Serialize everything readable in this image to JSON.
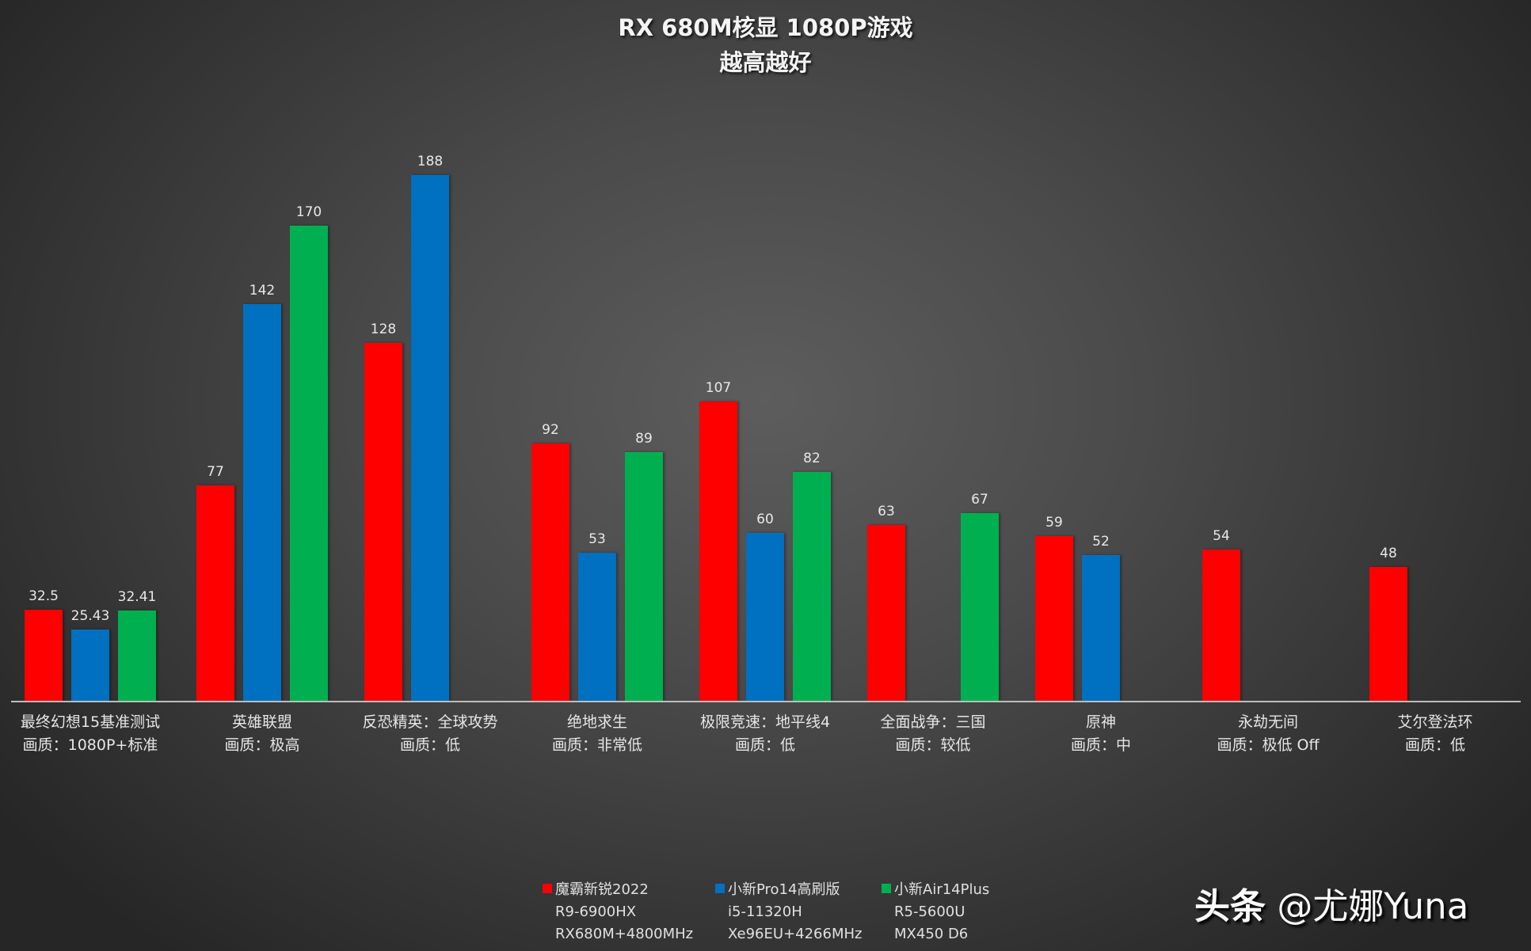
{
  "chart_data": {
    "type": "bar",
    "title": "RX 680M核显 1080P游戏",
    "subtitle": "越高越好",
    "xlabel": "",
    "ylabel": "",
    "grid": false,
    "legend_position": "bottom",
    "categories": [
      {
        "name": "最终幻想15基准测试",
        "quality": "画质：1080P+标准"
      },
      {
        "name": "英雄联盟",
        "quality": "画质：极高"
      },
      {
        "name": "反恐精英：全球攻势",
        "quality": "画质：低"
      },
      {
        "name": "绝地求生",
        "quality": "画质：非常低"
      },
      {
        "name": "极限竞速：地平线4",
        "quality": "画质：低"
      },
      {
        "name": "全面战争：三国",
        "quality": "画质：较低"
      },
      {
        "name": "原神",
        "quality": "画质：中"
      },
      {
        "name": "永劫无间",
        "quality": "画质：极低 Off"
      },
      {
        "name": "艾尔登法环",
        "quality": "画质：低"
      }
    ],
    "series": [
      {
        "name": "魔霸新锐2022",
        "lines": [
          "R9-6900HX",
          "RX680M+4800MHz"
        ],
        "color": "#ff0000",
        "values": [
          32.5,
          77,
          128,
          92,
          107,
          63,
          59,
          54,
          48
        ],
        "labels": [
          "32.5",
          "77",
          "128",
          "92",
          "107",
          "63",
          "59",
          "54",
          "48"
        ]
      },
      {
        "name": "小新Pro14高刷版",
        "lines": [
          "i5-11320H",
          "Xe96EU+4266MHz"
        ],
        "color": "#0070c0",
        "values": [
          25.43,
          142,
          188,
          53,
          60,
          null,
          52,
          null,
          null
        ],
        "labels": [
          "25.43",
          "142",
          "188",
          "53",
          "60",
          "",
          "52",
          "",
          ""
        ]
      },
      {
        "name": "小新Air14Plus",
        "lines": [
          "R5-5600U",
          "MX450 D6"
        ],
        "color": "#00b050",
        "values": [
          32.41,
          170,
          null,
          89,
          82,
          67,
          null,
          null,
          null
        ],
        "labels": [
          "32.41",
          "170",
          "",
          "89",
          "82",
          "67",
          "",
          "",
          ""
        ]
      }
    ],
    "ylim": [
      0,
      200
    ]
  },
  "watermark": {
    "platform": "头条",
    "handle": "@尤娜Yuna"
  }
}
